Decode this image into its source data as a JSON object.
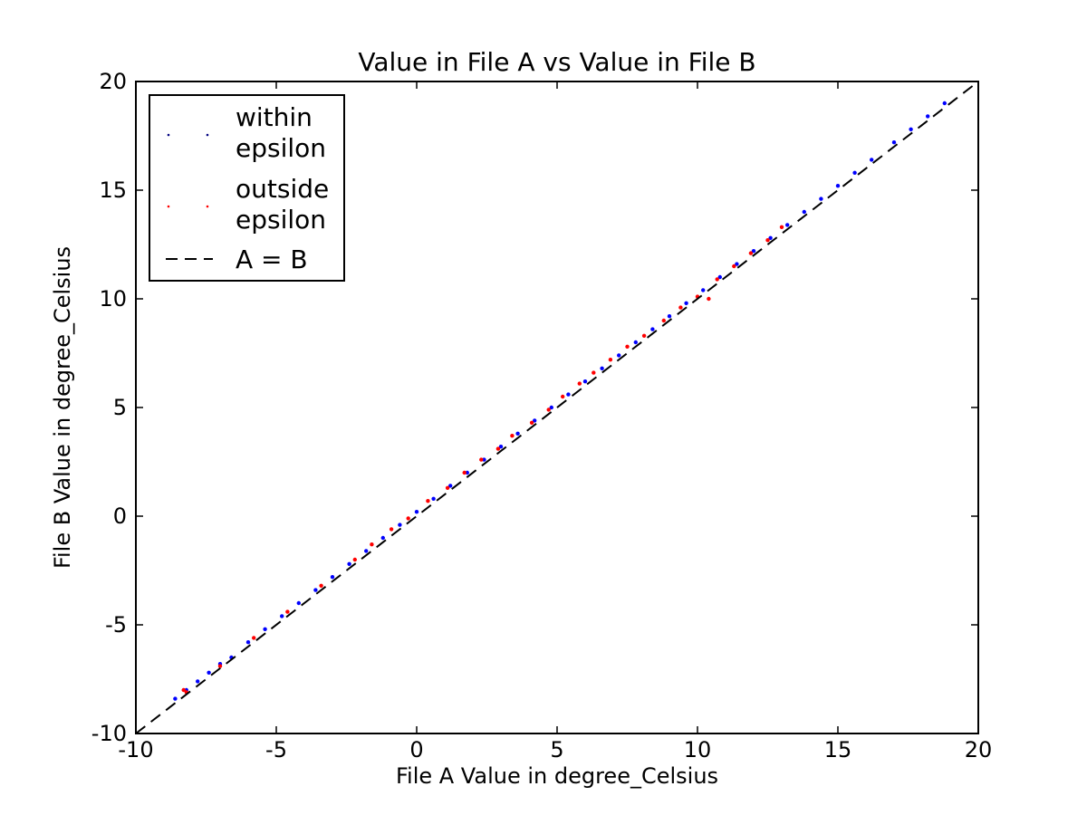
{
  "chart_data": {
    "type": "scatter",
    "title": "Value in File A vs Value in File B",
    "xlabel": "File A Value in degree_Celsius",
    "ylabel": "File B Value in degree_Celsius",
    "xlim": [
      -10,
      20
    ],
    "ylim": [
      -10,
      20
    ],
    "xticks": [
      -10,
      -5,
      0,
      5,
      10,
      15,
      20
    ],
    "yticks": [
      -10,
      -5,
      0,
      5,
      10,
      15,
      20
    ],
    "xtick_labels": [
      "-10",
      "-5",
      "0",
      "5",
      "10",
      "15",
      "20"
    ],
    "ytick_labels": [
      "-10",
      "-5",
      "0",
      "5",
      "10",
      "15",
      "20"
    ],
    "grid": false,
    "legend_position": "top-left",
    "legend": [
      {
        "key": "within",
        "label": "within epsilon",
        "lines": [
          "within",
          "epsilon"
        ],
        "marker": "point",
        "color": "#000080"
      },
      {
        "key": "outside",
        "label": "outside epsilon",
        "lines": [
          "outside",
          "epsilon"
        ],
        "marker": "point",
        "color": "#ff0000"
      },
      {
        "key": "identity",
        "label": "A = B",
        "lines": [
          "A = B"
        ],
        "marker": "dashed-line",
        "color": "#000000"
      }
    ],
    "series": [
      {
        "name": "within epsilon",
        "color": "#0000ff",
        "points": [
          [
            -8.6,
            -8.4
          ],
          [
            -8.2,
            -8.0
          ],
          [
            -7.8,
            -7.6
          ],
          [
            -7.4,
            -7.2
          ],
          [
            -7.0,
            -6.8
          ],
          [
            -6.6,
            -6.5
          ],
          [
            -6.0,
            -5.8
          ],
          [
            -5.4,
            -5.2
          ],
          [
            -4.8,
            -4.6
          ],
          [
            -4.2,
            -4.0
          ],
          [
            -3.6,
            -3.4
          ],
          [
            -3.0,
            -2.8
          ],
          [
            -2.4,
            -2.2
          ],
          [
            -1.8,
            -1.6
          ],
          [
            -1.2,
            -1.0
          ],
          [
            -0.6,
            -0.4
          ],
          [
            0.0,
            0.2
          ],
          [
            0.6,
            0.8
          ],
          [
            1.2,
            1.4
          ],
          [
            1.8,
            2.0
          ],
          [
            2.4,
            2.6
          ],
          [
            3.0,
            3.2
          ],
          [
            3.6,
            3.8
          ],
          [
            4.2,
            4.4
          ],
          [
            4.8,
            5.0
          ],
          [
            5.4,
            5.6
          ],
          [
            6.0,
            6.2
          ],
          [
            6.6,
            6.8
          ],
          [
            7.2,
            7.4
          ],
          [
            7.8,
            8.0
          ],
          [
            8.4,
            8.6
          ],
          [
            9.0,
            9.2
          ],
          [
            9.6,
            9.8
          ],
          [
            10.2,
            10.4
          ],
          [
            10.8,
            11.0
          ],
          [
            11.4,
            11.6
          ],
          [
            12.0,
            12.2
          ],
          [
            12.6,
            12.8
          ],
          [
            13.2,
            13.4
          ],
          [
            13.8,
            14.0
          ],
          [
            14.4,
            14.6
          ],
          [
            15.0,
            15.2
          ],
          [
            15.6,
            15.8
          ],
          [
            16.2,
            16.4
          ],
          [
            17.0,
            17.2
          ],
          [
            17.6,
            17.8
          ],
          [
            18.2,
            18.4
          ],
          [
            18.8,
            19.0
          ]
        ]
      },
      {
        "name": "outside epsilon",
        "color": "#ff0000",
        "points": [
          [
            -8.3,
            -8.0
          ],
          [
            -8.2,
            -8.1
          ],
          [
            -7.0,
            -6.9
          ],
          [
            -5.8,
            -5.6
          ],
          [
            -4.6,
            -4.4
          ],
          [
            -3.4,
            -3.2
          ],
          [
            -2.2,
            -2.0
          ],
          [
            -1.6,
            -1.3
          ],
          [
            -0.9,
            -0.6
          ],
          [
            -0.3,
            -0.1
          ],
          [
            0.4,
            0.7
          ],
          [
            1.1,
            1.3
          ],
          [
            1.7,
            2.0
          ],
          [
            2.3,
            2.6
          ],
          [
            2.9,
            3.1
          ],
          [
            3.4,
            3.7
          ],
          [
            4.1,
            4.3
          ],
          [
            4.7,
            4.9
          ],
          [
            5.2,
            5.5
          ],
          [
            5.8,
            6.1
          ],
          [
            6.3,
            6.6
          ],
          [
            6.9,
            7.2
          ],
          [
            7.5,
            7.8
          ],
          [
            8.1,
            8.3
          ],
          [
            8.8,
            9.0
          ],
          [
            9.4,
            9.6
          ],
          [
            10.0,
            10.1
          ],
          [
            10.4,
            10.0
          ],
          [
            10.7,
            10.9
          ],
          [
            11.3,
            11.5
          ],
          [
            11.9,
            12.1
          ],
          [
            12.5,
            12.7
          ],
          [
            13.0,
            13.3
          ]
        ]
      }
    ],
    "reference_line": {
      "name": "A = B",
      "from": [
        -10,
        -10
      ],
      "to": [
        20,
        20
      ],
      "style": "dashed",
      "color": "#000000"
    }
  }
}
